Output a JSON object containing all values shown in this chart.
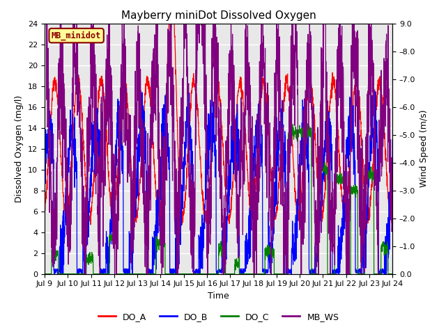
{
  "title": "Mayberry miniDot Dissolved Oxygen",
  "ylabel_left": "Dissolved Oxygen (mg/l)",
  "ylabel_right": "Wind Speed (m/s)",
  "xlabel": "Time",
  "ylim_left": [
    0,
    24
  ],
  "ylim_right": [
    0.0,
    9.0
  ],
  "yticks_left": [
    0,
    2,
    4,
    6,
    8,
    10,
    12,
    14,
    16,
    18,
    20,
    22,
    24
  ],
  "yticks_right": [
    0.0,
    1.0,
    2.0,
    3.0,
    4.0,
    5.0,
    6.0,
    7.0,
    8.0,
    9.0
  ],
  "xtick_labels": [
    "Jul 9",
    "Jul 10",
    "Jul 11",
    "Jul 12",
    "Jul 13",
    "Jul 14",
    "Jul 15",
    "Jul 16",
    "Jul 17",
    "Jul 18",
    "Jul 19",
    "Jul 20",
    "Jul 21",
    "Jul 22",
    "Jul 23",
    "Jul 24"
  ],
  "legend_entries": [
    "DO_A",
    "DO_B",
    "DO_C",
    "MB_WS"
  ],
  "legend_colors": [
    "red",
    "blue",
    "green",
    "purple"
  ],
  "line_colors": [
    "red",
    "blue",
    "green",
    "purple"
  ],
  "annotation_text": "MB_minidot",
  "annotation_color": "#8B0000",
  "annotation_bg": "#FFFF99",
  "annotation_border": "#8B0000",
  "bg_color": "#DCDCDC",
  "plot_bg": "#E8E8E8",
  "grid_color": "white",
  "title_fontsize": 11,
  "axis_fontsize": 9,
  "tick_fontsize": 8,
  "legend_fontsize": 9,
  "right_tick_prefix": "-"
}
